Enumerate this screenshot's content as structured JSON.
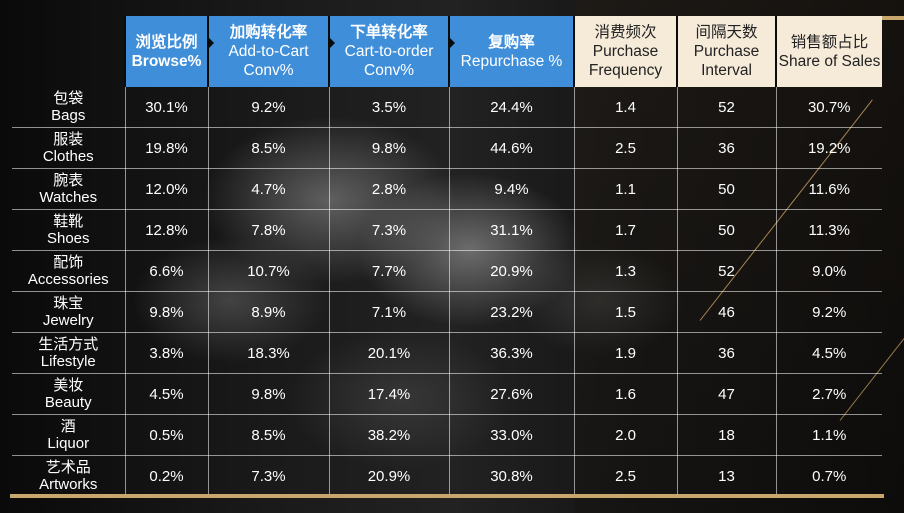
{
  "colors": {
    "header_blue": "#3f8ed9",
    "header_cream": "#f6ead9",
    "accent_gold": "#c9a66b"
  },
  "table": {
    "headers": [
      {
        "zh": "",
        "en": ""
      },
      {
        "zh": "浏览比例",
        "en": "Browse%"
      },
      {
        "zh": "加购转化率",
        "en": "Add-to-Cart Conv%"
      },
      {
        "zh": "下单转化率",
        "en": "Cart-to-order Conv%"
      },
      {
        "zh": "复购率",
        "en": "Repurchase %"
      },
      {
        "zh": "消费频次",
        "en": "Purchase Frequency"
      },
      {
        "zh": "间隔天数",
        "en": "Purchase Interval"
      },
      {
        "zh": "销售额占比",
        "en": "Share of Sales"
      }
    ],
    "rows": [
      {
        "zh": "包袋",
        "en": "Bags",
        "browse": "30.1%",
        "atc": "9.2%",
        "cto": "3.5%",
        "rep": "24.4%",
        "freq": "1.4",
        "interval": "52",
        "share": "30.7%"
      },
      {
        "zh": "服装",
        "en": "Clothes",
        "browse": "19.8%",
        "atc": "8.5%",
        "cto": "9.8%",
        "rep": "44.6%",
        "freq": "2.5",
        "interval": "36",
        "share": "19.2%"
      },
      {
        "zh": "腕表",
        "en": "Watches",
        "browse": "12.0%",
        "atc": "4.7%",
        "cto": "2.8%",
        "rep": "9.4%",
        "freq": "1.1",
        "interval": "50",
        "share": "11.6%"
      },
      {
        "zh": "鞋靴",
        "en": "Shoes",
        "browse": "12.8%",
        "atc": "7.8%",
        "cto": "7.3%",
        "rep": "31.1%",
        "freq": "1.7",
        "interval": "50",
        "share": "11.3%"
      },
      {
        "zh": "配饰",
        "en": "Accessories",
        "browse": "6.6%",
        "atc": "10.7%",
        "cto": "7.7%",
        "rep": "20.9%",
        "freq": "1.3",
        "interval": "52",
        "share": "9.0%"
      },
      {
        "zh": "珠宝",
        "en": "Jewelry",
        "browse": "9.8%",
        "atc": "8.9%",
        "cto": "7.1%",
        "rep": "23.2%",
        "freq": "1.5",
        "interval": "46",
        "share": "9.2%"
      },
      {
        "zh": "生活方式",
        "en": "Lifestyle",
        "browse": "3.8%",
        "atc": "18.3%",
        "cto": "20.1%",
        "rep": "36.3%",
        "freq": "1.9",
        "interval": "36",
        "share": "4.5%"
      },
      {
        "zh": "美妆",
        "en": "Beauty",
        "browse": "4.5%",
        "atc": "9.8%",
        "cto": "17.4%",
        "rep": "27.6%",
        "freq": "1.6",
        "interval": "47",
        "share": "2.7%"
      },
      {
        "zh": "酒",
        "en": "Liquor",
        "browse": "0.5%",
        "atc": "8.5%",
        "cto": "38.2%",
        "rep": "33.0%",
        "freq": "2.0",
        "interval": "18",
        "share": "1.1%"
      },
      {
        "zh": "艺术品",
        "en": "Artworks",
        "browse": "0.2%",
        "atc": "7.3%",
        "cto": "20.9%",
        "rep": "30.8%",
        "freq": "2.5",
        "interval": "13",
        "share": "0.7%"
      }
    ]
  }
}
